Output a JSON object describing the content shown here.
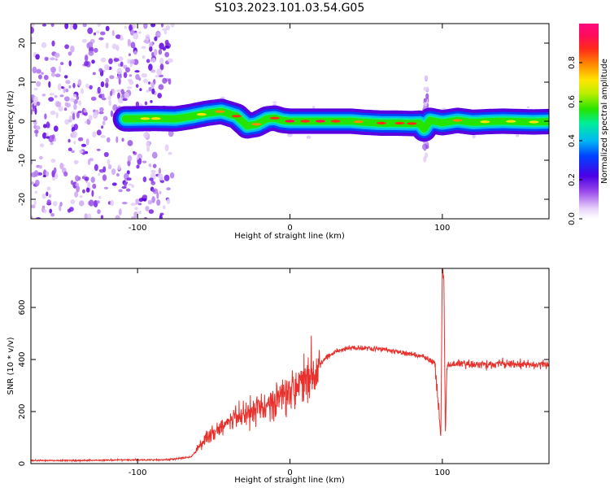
{
  "figure_title": "S103.2023.101.03.54.G05",
  "chart_data": [
    {
      "type": "heatmap",
      "title": "S103.2023.101.03.54.G05",
      "xlabel": "Height of straight line (km)",
      "ylabel": "Frequency (Hz)",
      "xlim": [
        -170,
        170
      ],
      "ylim": [
        -25,
        25
      ],
      "x_ticks": [
        -100,
        0,
        100
      ],
      "y_ticks": [
        -20,
        -10,
        0,
        10,
        20
      ],
      "x_tick_labels": [
        "-100",
        "0",
        "100"
      ],
      "y_tick_labels": [
        "-20",
        "-10",
        "0",
        "10",
        "20"
      ],
      "colorbar": {
        "label": "Normalized spectral amplitude",
        "range": [
          0,
          1
        ],
        "ticks": [
          0.0,
          0.2,
          0.4,
          0.6,
          0.8
        ],
        "tick_labels": [
          "0.0",
          "0.2",
          "0.4",
          "0.6",
          "0.8"
        ]
      },
      "ridge": {
        "x": [
          -105,
          -90,
          -75,
          -65,
          -55,
          -45,
          -35,
          -28,
          -22,
          -15,
          -10,
          -5,
          0,
          10,
          20,
          30,
          40,
          50,
          60,
          70,
          80,
          85,
          88,
          92,
          100,
          110,
          120,
          130,
          140,
          150,
          160,
          170
        ],
        "y": [
          0.6,
          0.7,
          0.6,
          1.2,
          2.0,
          2.5,
          1.3,
          -1.2,
          -0.8,
          0.6,
          0.8,
          0.2,
          0.0,
          0.0,
          0.0,
          0.0,
          0.0,
          -0.3,
          -0.5,
          -0.5,
          -0.6,
          -0.5,
          -2.0,
          0.2,
          -0.4,
          0.2,
          -0.3,
          -0.1,
          0.0,
          -0.1,
          -0.2,
          -0.1
        ]
      },
      "noise_region_x": [
        -170,
        -77
      ],
      "spike_x": 89
    },
    {
      "type": "line",
      "xlabel": "Height of straight line (km)",
      "ylabel": "SNR (10 * v/v)",
      "xlim": [
        -170,
        170
      ],
      "ylim": [
        0,
        750
      ],
      "x_ticks": [
        -100,
        0,
        100
      ],
      "y_ticks": [
        0,
        200,
        400,
        600
      ],
      "x_tick_labels": [
        "-100",
        "0",
        "100"
      ],
      "y_tick_labels": [
        "0",
        "200",
        "400",
        "600"
      ],
      "series": [
        {
          "color": "#e8312c",
          "x": [
            -170,
            -140,
            -110,
            -80,
            -65,
            -60,
            -55,
            -50,
            -45,
            -40,
            -35,
            -30,
            -25,
            -20,
            -15,
            -10,
            -5,
            0,
            5,
            10,
            15,
            20,
            25,
            30,
            40,
            50,
            60,
            70,
            80,
            85,
            88,
            89,
            90,
            92,
            95,
            98,
            99,
            100,
            101,
            102,
            103,
            105,
            110,
            120,
            130,
            140,
            150,
            160,
            170
          ],
          "y": [
            12,
            12,
            14,
            15,
            25,
            60,
            100,
            120,
            140,
            160,
            175,
            190,
            205,
            215,
            225,
            240,
            260,
            290,
            310,
            335,
            360,
            385,
            410,
            430,
            445,
            445,
            440,
            430,
            420,
            415,
            410,
            400,
            405,
            395,
            390,
            200,
            90,
            750,
            720,
            110,
            380,
            375,
            385,
            380,
            380,
            385,
            380,
            380,
            380
          ]
        }
      ]
    }
  ]
}
